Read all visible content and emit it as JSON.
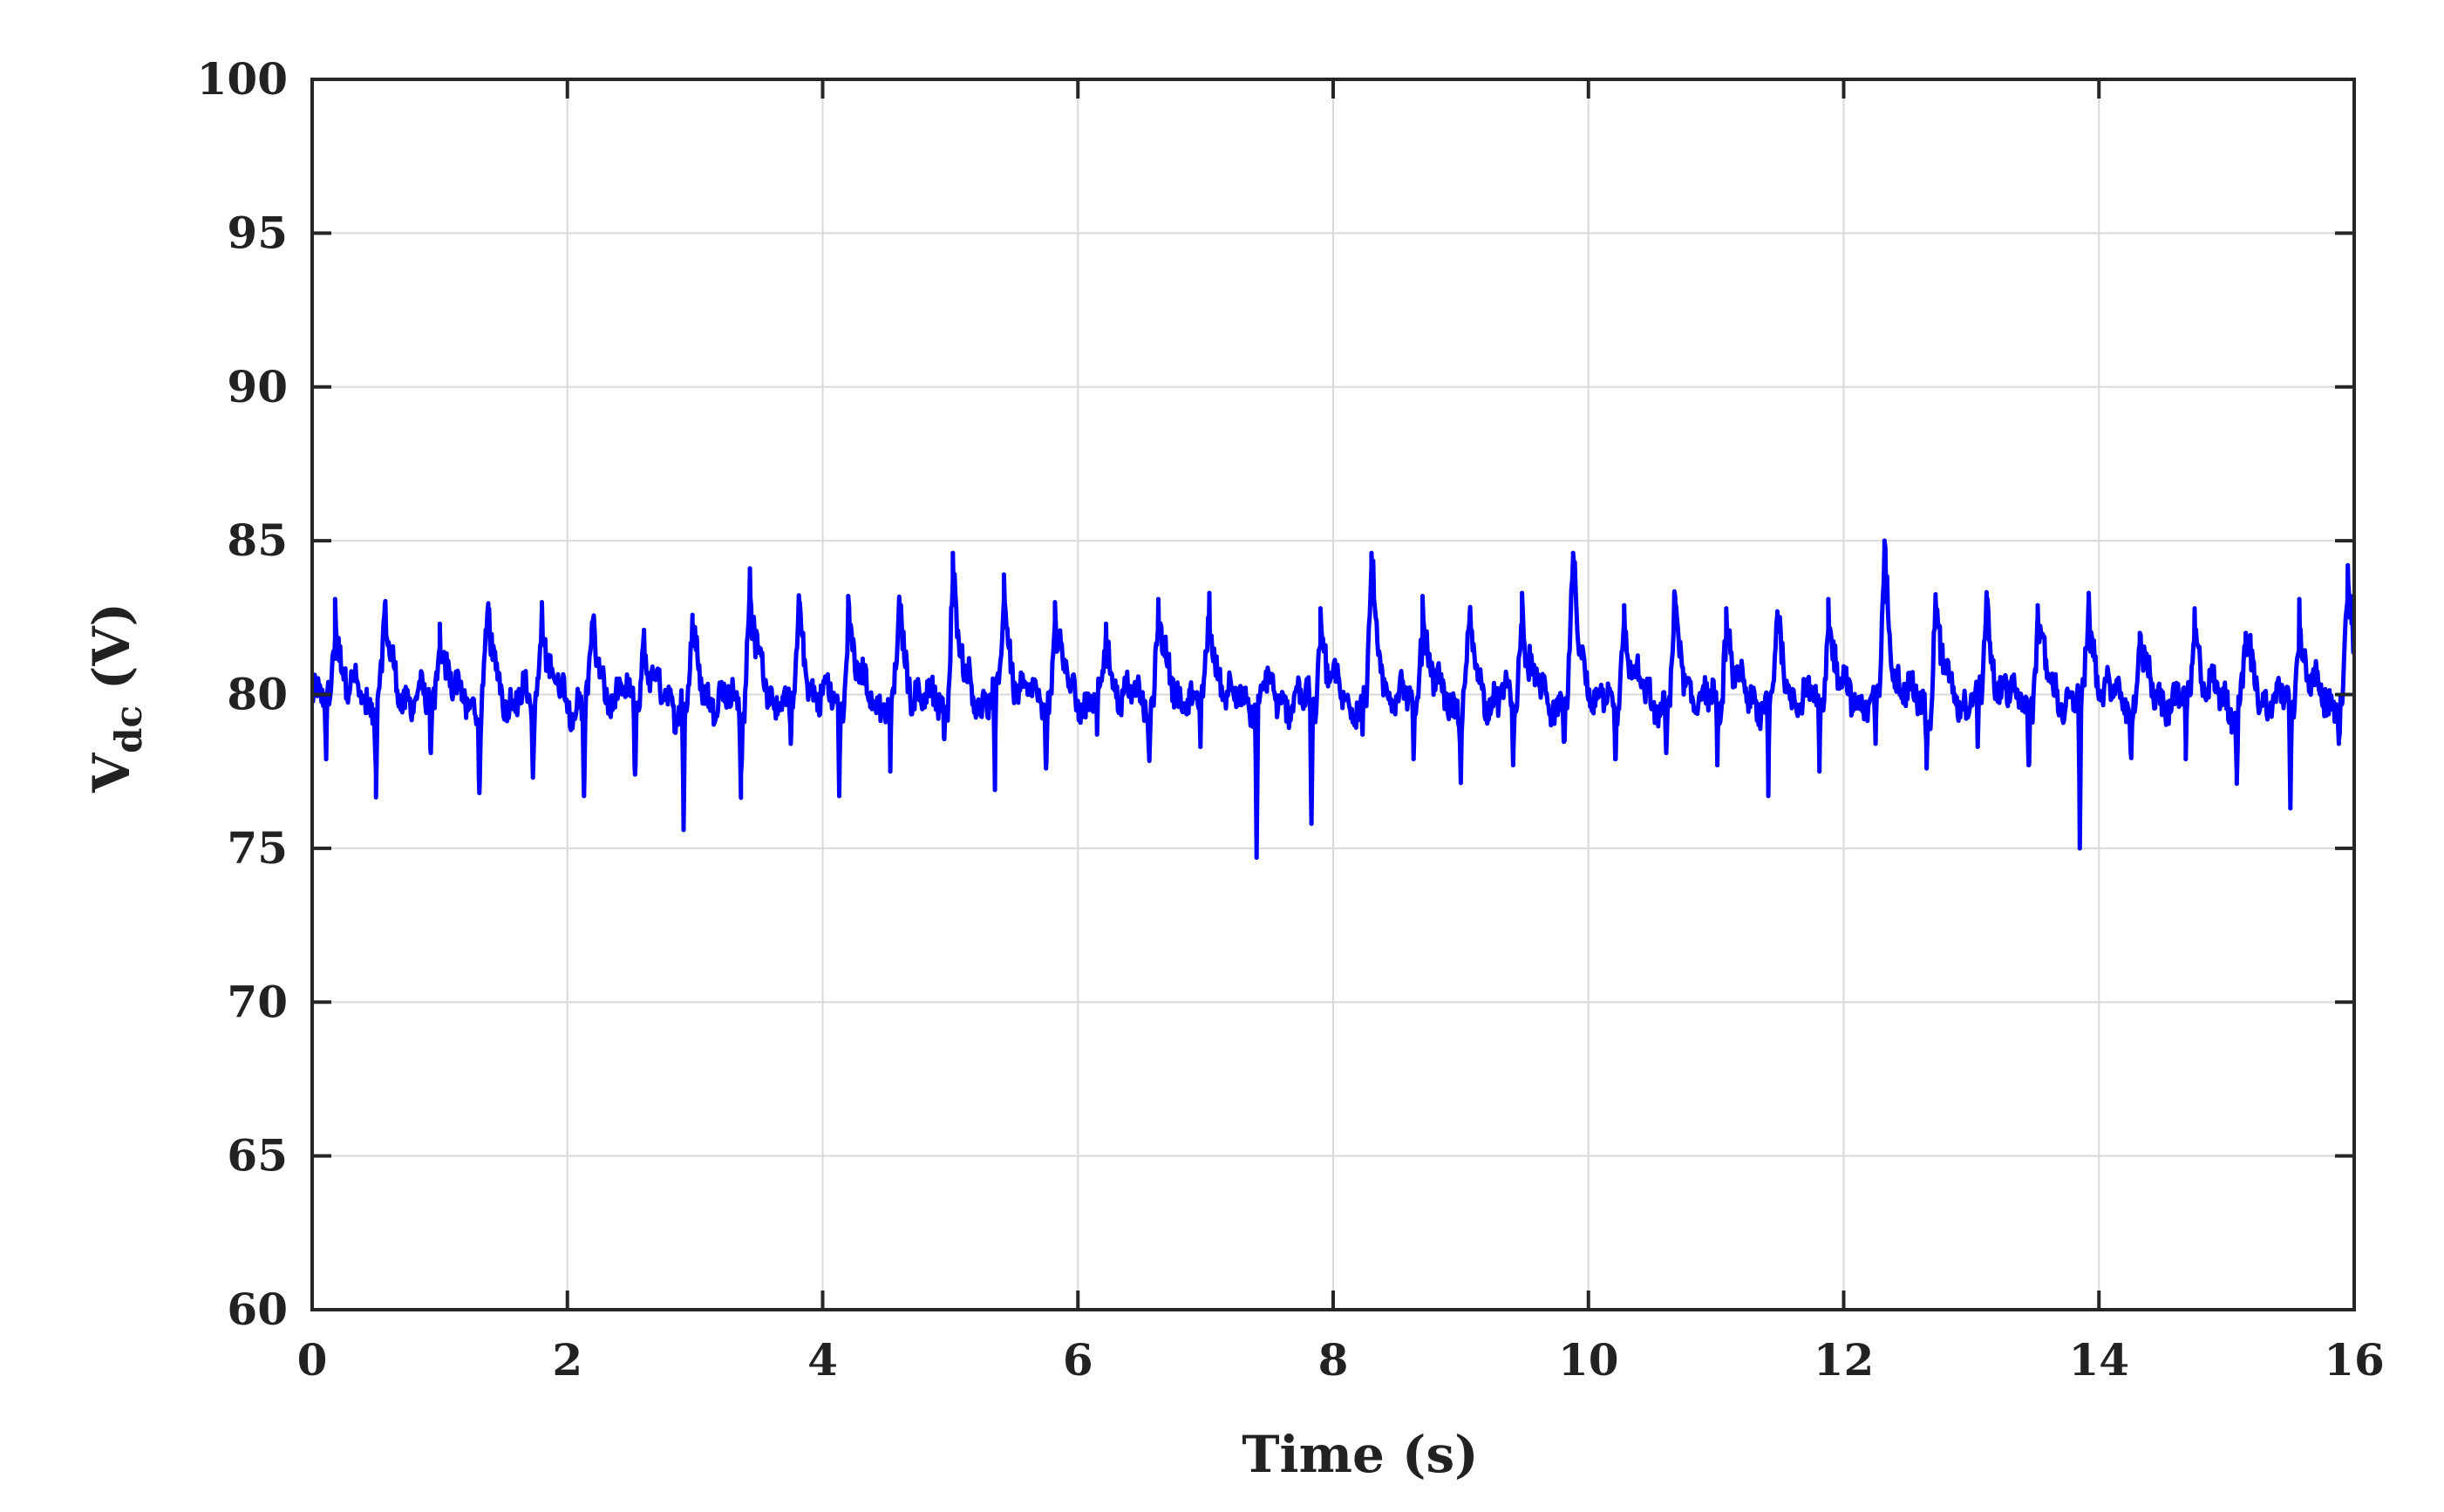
{
  "chart_data": {
    "type": "line",
    "title": "",
    "xlabel": "Time (s)",
    "ylabel": {
      "main": "V",
      "subscript": "dc",
      "unit": "(V)"
    },
    "xlim": [
      0,
      16
    ],
    "ylim": [
      60,
      100
    ],
    "xticks": [
      "0",
      "2",
      "4",
      "6",
      "8",
      "10",
      "12",
      "14",
      "16"
    ],
    "yticks": [
      "60",
      "65",
      "70",
      "75",
      "80",
      "85",
      "90",
      "95",
      "100"
    ],
    "grid": true,
    "legend": "none",
    "series": [
      {
        "color": "#0000ff",
        "baseline": 79.8,
        "spikes": [
          {
            "x": 0.18,
            "up": 83.1,
            "down": 77.9
          },
          {
            "x": 0.57,
            "up": 82.9,
            "down": 77.5
          },
          {
            "x": 1.0,
            "up": 82.3,
            "down": 78.1
          },
          {
            "x": 1.38,
            "up": 82.8,
            "down": 76.8
          },
          {
            "x": 1.8,
            "up": 83.0,
            "down": 77.3
          },
          {
            "x": 2.2,
            "up": 82.4,
            "down": 76.7
          },
          {
            "x": 2.6,
            "up": 82.1,
            "down": 77.4
          },
          {
            "x": 2.98,
            "up": 82.3,
            "down": 75.6
          },
          {
            "x": 3.43,
            "up": 84.1,
            "down": 77.4
          },
          {
            "x": 3.82,
            "up": 83.0,
            "down": 78.4
          },
          {
            "x": 4.2,
            "up": 83.2,
            "down": 76.7
          },
          {
            "x": 4.6,
            "up": 83.1,
            "down": 77.5
          },
          {
            "x": 5.02,
            "up": 84.6,
            "down": 78.6
          },
          {
            "x": 5.42,
            "up": 83.9,
            "down": 76.9
          },
          {
            "x": 5.82,
            "up": 83.0,
            "down": 77.6
          },
          {
            "x": 6.22,
            "up": 82.3,
            "down": 78.7
          },
          {
            "x": 6.63,
            "up": 83.1,
            "down": 77.9
          },
          {
            "x": 7.03,
            "up": 83.3,
            "down": 78.3
          },
          {
            "x": 7.47,
            "up": 80.4,
            "down": 74.7
          },
          {
            "x": 7.9,
            "up": 82.8,
            "down": 75.8
          },
          {
            "x": 8.3,
            "up": 84.6,
            "down": 78.7
          },
          {
            "x": 8.7,
            "up": 83.2,
            "down": 77.9
          },
          {
            "x": 9.07,
            "up": 82.6,
            "down": 77.2
          },
          {
            "x": 9.48,
            "up": 83.3,
            "down": 77.7
          },
          {
            "x": 9.88,
            "up": 84.6,
            "down": 78.6
          },
          {
            "x": 10.28,
            "up": 82.9,
            "down": 77.9
          },
          {
            "x": 10.68,
            "up": 83.0,
            "down": 78.1
          },
          {
            "x": 11.08,
            "up": 82.8,
            "down": 77.7
          },
          {
            "x": 11.48,
            "up": 82.7,
            "down": 76.7
          },
          {
            "x": 11.88,
            "up": 83.1,
            "down": 77.5
          },
          {
            "x": 12.32,
            "up": 85.0,
            "down": 78.4
          },
          {
            "x": 12.72,
            "up": 83.1,
            "down": 77.6
          },
          {
            "x": 13.12,
            "up": 83.2,
            "down": 78.3
          },
          {
            "x": 13.52,
            "up": 82.9,
            "down": 77.7
          },
          {
            "x": 13.92,
            "up": 83.3,
            "down": 75.0
          },
          {
            "x": 14.32,
            "up": 82.0,
            "down": 78.1
          },
          {
            "x": 14.75,
            "up": 82.8,
            "down": 77.9
          },
          {
            "x": 15.15,
            "up": 82.0,
            "down": 77.1
          },
          {
            "x": 15.57,
            "up": 83.1,
            "down": 76.3
          },
          {
            "x": 15.95,
            "up": 84.2,
            "down": 78.4
          }
        ]
      }
    ]
  }
}
